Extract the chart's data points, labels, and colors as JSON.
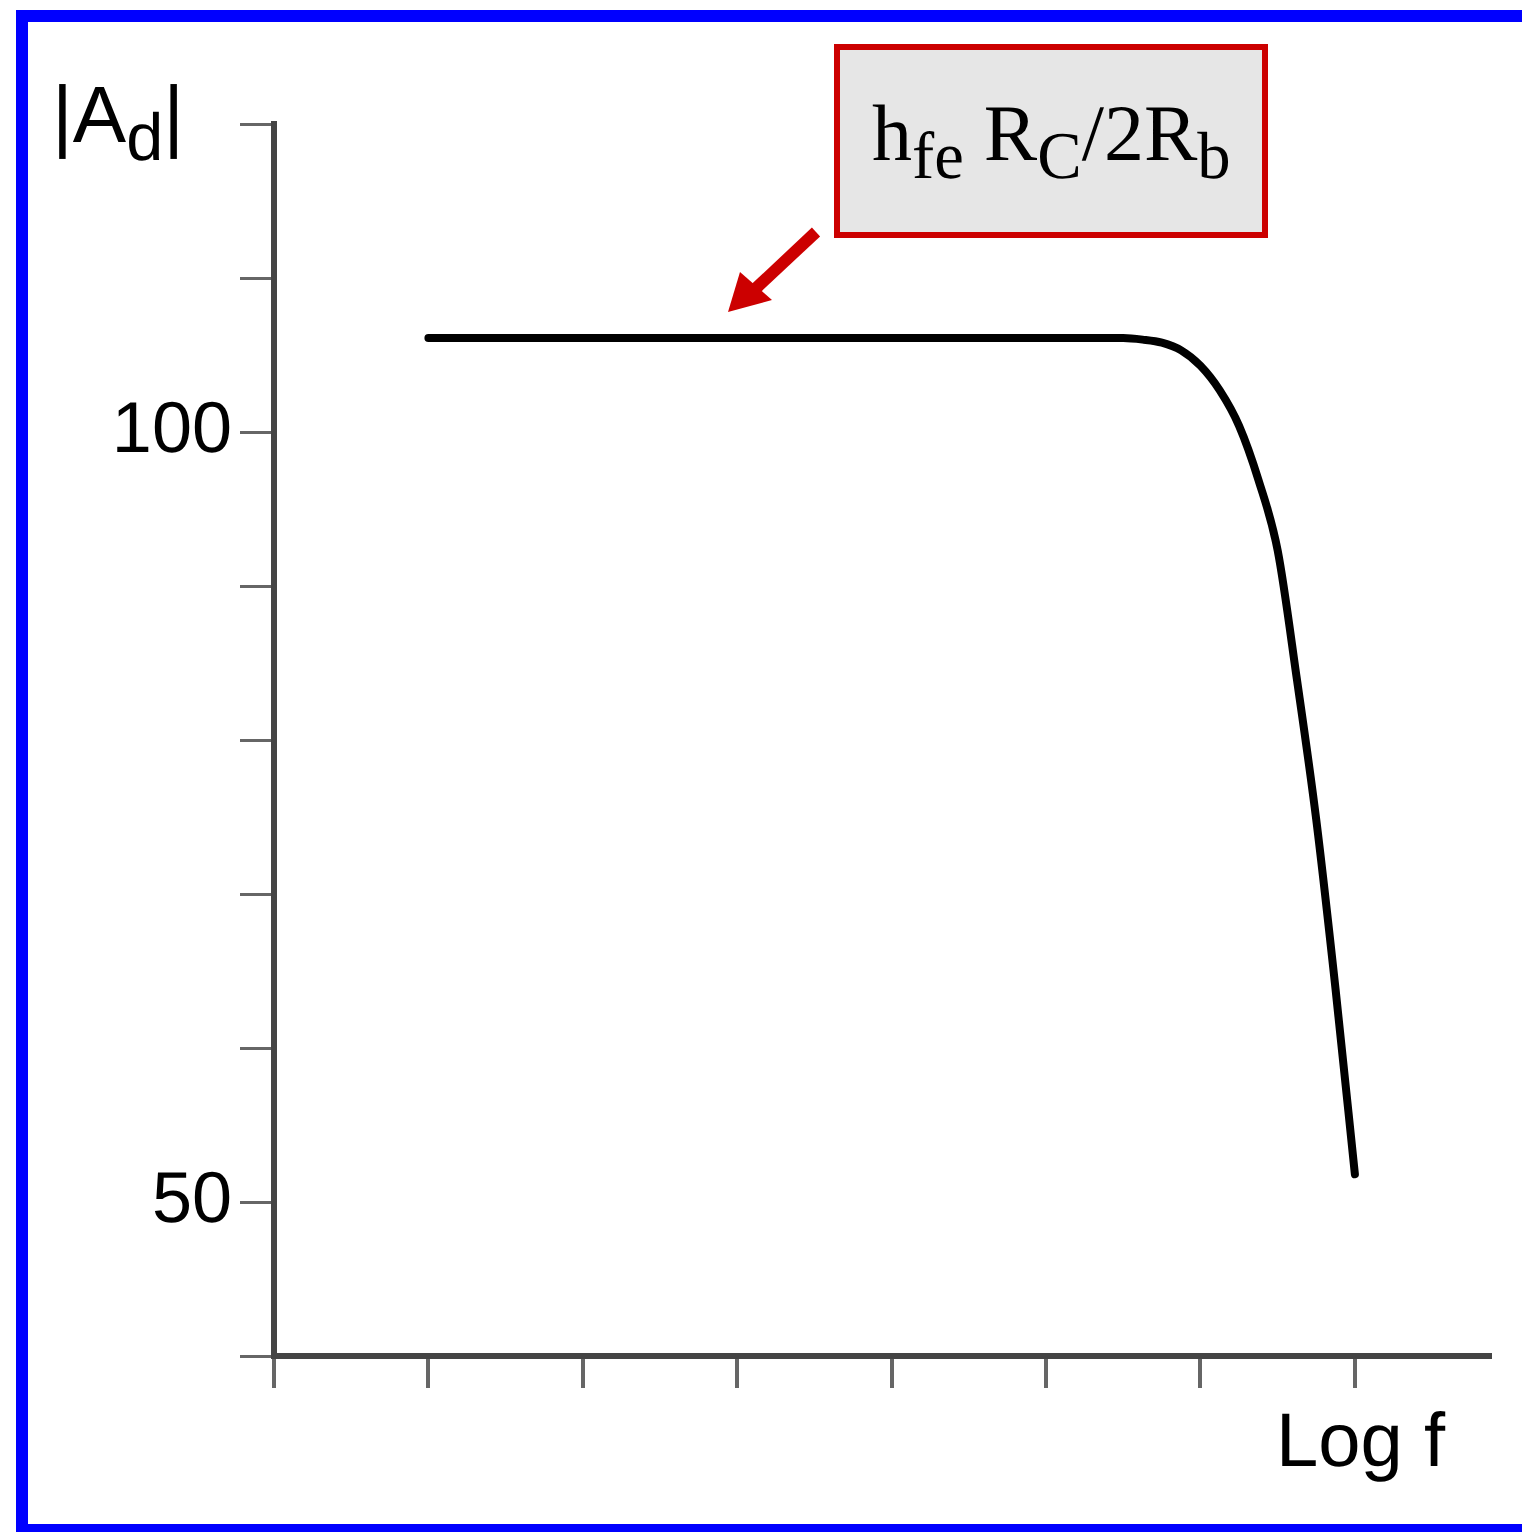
{
  "chart_data": {
    "type": "line",
    "ylabel": "|A$_{d}$|",
    "xlabel": "Log f",
    "annotations": [
      "h$_{fe}$ R$_{C}$/2R$_{b}$"
    ],
    "categories": [
      null,
      null,
      null,
      null,
      null,
      null,
      null,
      null,
      null,
      null,
      null,
      null,
      null,
      null,
      null,
      null,
      null,
      null,
      null,
      null,
      null,
      null,
      null,
      null,
      null,
      null,
      null,
      null,
      null,
      null,
      null,
      null,
      null,
      null,
      null,
      null,
      null,
      null,
      null,
      null,
      null,
      null,
      null,
      null,
      null,
      null,
      null,
      null,
      null,
      null,
      null,
      null,
      null,
      null,
      null,
      null,
      null,
      null,
      null,
      null,
      null,
      null,
      null,
      null
    ],
    "series": [
      {
        "color": "#000000",
        "values": [
          null,
          null,
          null,
          null,
          null,
          null,
          null,
          null,
          106.1,
          106.1,
          106.1,
          106.1,
          106.1,
          106.1,
          106.1,
          106.1,
          106.1,
          106.1,
          106.1,
          106.1,
          106.1,
          106.1,
          106.1,
          106.1,
          106.1,
          106.1,
          106.1,
          106.1,
          106.1,
          106.1,
          106.1,
          106.1,
          106.1,
          106.1,
          106.1,
          106.1,
          106.1,
          106.1,
          106.1,
          106.1,
          106.1,
          106.1,
          106.1,
          106.1,
          106.1,
          106.0,
          105.8,
          105.3,
          104.3,
          102.7,
          100.4,
          96.9,
          92.3,
          83.9,
          74.8,
          63.8,
          51.8,
          null,
          null,
          null,
          null,
          null,
          null,
          null
        ]
      }
    ],
    "ylim": [
      40,
      120
    ],
    "yticks": [
      {
        "value": 40,
        "label": null
      },
      50,
      {
        "value": 60,
        "label": null
      },
      {
        "value": 70,
        "label": null
      },
      {
        "value": 80,
        "label": null
      },
      {
        "value": 90,
        "label": null
      },
      100,
      {
        "value": 110,
        "label": null
      },
      {
        "value": 120,
        "label": null
      }
    ],
    "tick_labels": "y",
    "grid": false,
    "legend": false,
    "marker": "none",
    "line_style": "solid"
  }
}
